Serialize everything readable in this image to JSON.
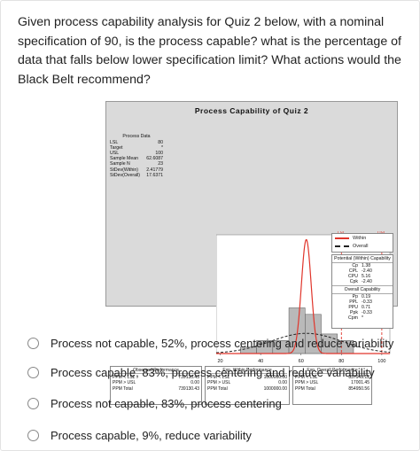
{
  "question": "Given process capability analysis for Quiz 2 below, with a nominal specification of 90, is the process capable? what is the percentage of data that falls below lower specification limit? What actions would the Black Belt recommend?",
  "figure": {
    "title": "Process Capability of Quiz 2",
    "process_data": {
      "title": "Process Data",
      "rows": [
        {
          "label": "LSL",
          "value": "80"
        },
        {
          "label": "Target",
          "value": "*"
        },
        {
          "label": "USL",
          "value": "100"
        },
        {
          "label": "Sample Mean",
          "value": "62.6087"
        },
        {
          "label": "Sample N",
          "value": "23"
        },
        {
          "label": "StDev(Within)",
          "value": "2.41779"
        },
        {
          "label": "StDev(Overall)",
          "value": "17.6371"
        }
      ]
    },
    "legend": [
      {
        "name": "Within",
        "style": "solid",
        "color": "#e0352b"
      },
      {
        "name": "Overall",
        "style": "dashed",
        "color": "#222222"
      }
    ],
    "potential": {
      "title": "Potential (Within) Capability",
      "rows": [
        {
          "label": "Cp",
          "value": "1.38"
        },
        {
          "label": "CPL",
          "value": "-2.40"
        },
        {
          "label": "CPU",
          "value": "5.16"
        },
        {
          "label": "Cpk",
          "value": "-2.40"
        }
      ]
    },
    "overall": {
      "title": "Overall Capability",
      "rows": [
        {
          "label": "Pp",
          "value": "0.19"
        },
        {
          "label": "PPL",
          "value": "-0.33"
        },
        {
          "label": "PPU",
          "value": "0.71"
        },
        {
          "label": "Ppk",
          "value": "-0.33"
        },
        {
          "label": "Cpm",
          "value": "*"
        }
      ]
    },
    "observed": {
      "title": "Observed Performance",
      "rows": [
        {
          "label": "PPM < LSL",
          "value": "739130.43"
        },
        {
          "label": "PPM > USL",
          "value": "0.00"
        },
        {
          "label": "PPM Total",
          "value": "739130.43"
        }
      ]
    },
    "exp_within": {
      "title": "Exp. Within Performance",
      "rows": [
        {
          "label": "PPM < LSL",
          "value": "1000000.00"
        },
        {
          "label": "PPM > USL",
          "value": "0.00"
        },
        {
          "label": "PPM Total",
          "value": "1000000.00"
        }
      ]
    },
    "exp_overall": {
      "title": "Exp. Overall Performance",
      "rows": [
        {
          "label": "PPM < LSL",
          "value": "837949.12"
        },
        {
          "label": "PPM > USL",
          "value": "17001.45"
        },
        {
          "label": "PPM Total",
          "value": "854950.56"
        }
      ]
    },
    "chart_data": {
      "type": "bar",
      "title": "Process Capability of Quiz 2",
      "x_ticks": [
        "20",
        "40",
        "60",
        "80",
        "100"
      ],
      "xlim": [
        18,
        104
      ],
      "bins": [
        {
          "x0": 30,
          "x1": 38,
          "count": 1
        },
        {
          "x0": 38,
          "x1": 46,
          "count": 2
        },
        {
          "x0": 46,
          "x1": 54,
          "count": 2
        },
        {
          "x0": 54,
          "x1": 62,
          "count": 7
        },
        {
          "x0": 62,
          "x1": 70,
          "count": 6
        },
        {
          "x0": 70,
          "x1": 78,
          "count": 3
        },
        {
          "x0": 78,
          "x1": 86,
          "count": 2
        }
      ],
      "spec_limits": [
        {
          "name": "LSL",
          "value": 80
        },
        {
          "name": "USL",
          "value": 100
        }
      ],
      "within_curve": {
        "mean": 62.6087,
        "sd": 2.41779
      },
      "overall_curve": {
        "mean": 62.6087,
        "sd": 17.6371
      }
    }
  },
  "options": [
    {
      "label": "Process not capable, 52%, process centering and reduce variability"
    },
    {
      "label": "Process capable, 83%, process centering and reduce variability"
    },
    {
      "label": "Process not capable, 83%, process centering"
    },
    {
      "label": "Process capable, 9%, reduce variability"
    }
  ]
}
